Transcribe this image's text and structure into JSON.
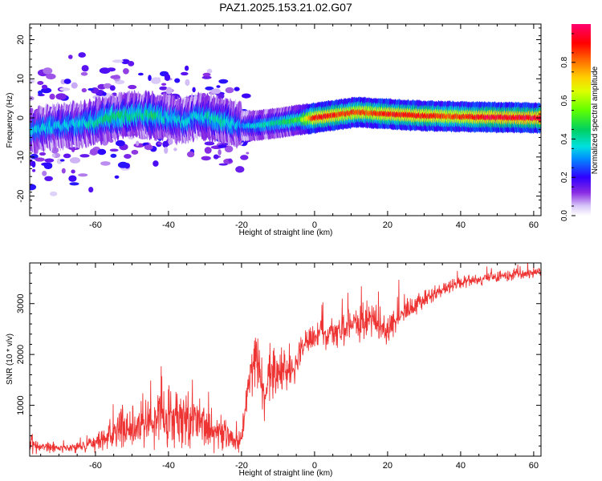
{
  "title": "PAZ1.2025.153.21.02.G07",
  "chart_data": [
    {
      "type": "heatmap",
      "xlabel": "Height of straight line (km)",
      "ylabel": "Frequency (Hz)",
      "xlim": [
        -78,
        62
      ],
      "ylim": [
        -25,
        24
      ],
      "xticks": [
        -60,
        -40,
        -20,
        0,
        20,
        40,
        60
      ],
      "yticks": [
        -20,
        -10,
        0,
        10,
        20
      ],
      "colorbar": {
        "label": "Normalized spectral amplitude",
        "range": [
          0,
          1
        ],
        "ticks": [
          0.0,
          0.2,
          0.4,
          0.6,
          0.8
        ],
        "colormap": "rainbow"
      },
      "ridge": {
        "x": [
          -76,
          -72,
          -68,
          -64,
          -60,
          -56,
          -52,
          -48,
          -44,
          -40,
          -36,
          -32,
          -28,
          -24,
          -20,
          -16,
          -12,
          -8,
          -4,
          0,
          4,
          8,
          12,
          16,
          20,
          24,
          28,
          32,
          36,
          40,
          44,
          48,
          52,
          56,
          60,
          62
        ],
        "freq": [
          -3,
          -2.5,
          -2,
          -1.5,
          -1,
          0,
          0.5,
          1,
          0.5,
          0,
          -1,
          0.5,
          0,
          -1,
          -2,
          -2,
          -1.5,
          -1,
          -0.5,
          0,
          0.5,
          1,
          1.5,
          1.2,
          1,
          0.8,
          0.6,
          0.5,
          0.4,
          0.3,
          0.2,
          0.2,
          0.1,
          0.1,
          0,
          0
        ],
        "amplitude": [
          0.35,
          0.35,
          0.35,
          0.35,
          0.4,
          0.45,
          0.45,
          0.4,
          0.45,
          0.35,
          0.35,
          0.35,
          0.4,
          0.4,
          0.3,
          0.35,
          0.4,
          0.45,
          0.5,
          0.9,
          0.9,
          0.85,
          0.85,
          0.85,
          0.9,
          0.9,
          0.9,
          0.9,
          0.85,
          0.85,
          0.9,
          0.95,
          0.95,
          0.95,
          0.95,
          0.95
        ]
      },
      "noise_region": {
        "x": [
          -78,
          -18
        ],
        "freq": [
          -25,
          24
        ]
      }
    },
    {
      "type": "line",
      "xlabel": "Height of straight line (km)",
      "ylabel": "SNR (10 * v/v)",
      "xlim": [
        -78,
        62
      ],
      "ylim": [
        0,
        3800
      ],
      "xticks": [
        -60,
        -40,
        -20,
        0,
        20,
        40,
        60
      ],
      "yticks": [
        1000,
        2000,
        3000
      ],
      "color": "#ee3333",
      "x": [
        -78,
        -74,
        -70,
        -66,
        -62,
        -58,
        -54,
        -50,
        -46,
        -42,
        -38,
        -34,
        -30,
        -26,
        -22,
        -20,
        -18,
        -16,
        -14,
        -12,
        -10,
        -8,
        -6,
        -4,
        -2,
        0,
        4,
        8,
        12,
        16,
        20,
        24,
        28,
        32,
        36,
        40,
        44,
        48,
        52,
        56,
        60,
        62
      ],
      "y": [
        200,
        180,
        170,
        170,
        200,
        350,
        450,
        550,
        650,
        800,
        900,
        750,
        600,
        450,
        300,
        300,
        1500,
        1900,
        1200,
        1700,
        1800,
        1600,
        1700,
        2100,
        2300,
        2400,
        2400,
        2500,
        2600,
        2700,
        2500,
        2800,
        3000,
        3150,
        3300,
        3400,
        3450,
        3500,
        3550,
        3580,
        3620,
        3650
      ],
      "noise_amplitude": [
        200,
        150,
        120,
        120,
        150,
        400,
        450,
        500,
        550,
        700,
        900,
        700,
        600,
        450,
        250,
        250,
        600,
        700,
        800,
        700,
        600,
        500,
        450,
        400,
        350,
        350,
        350,
        400,
        450,
        400,
        350,
        300,
        250,
        200,
        180,
        160,
        150,
        150,
        150,
        150,
        150,
        150
      ]
    }
  ]
}
